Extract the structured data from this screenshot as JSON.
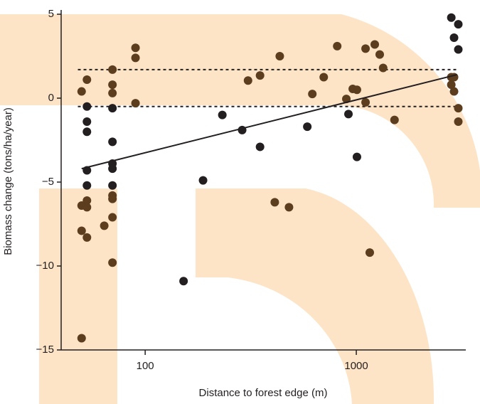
{
  "chart_data": {
    "type": "scatter",
    "xlabel": "Distance to forest edge (m)",
    "ylabel": "Biomass change (tons/ha/year)",
    "xscale": "log",
    "xlim": [
      40,
      3300
    ],
    "ylim": [
      -15,
      5
    ],
    "xticks": [
      100,
      1000
    ],
    "yticks": [
      {
        "value": 5,
        "label": "5"
      },
      {
        "value": 0,
        "label": "0"
      },
      {
        "value": -5,
        "label": "−5"
      },
      {
        "value": -10,
        "label": "−10"
      },
      {
        "value": -15,
        "label": "−15"
      }
    ],
    "series": [
      {
        "color": "#231f20",
        "x": [
          53,
          53,
          53,
          53,
          53,
          70,
          70,
          70,
          70,
          70,
          152,
          188,
          232,
          288,
          350,
          586,
          918,
          1007,
          2818,
          2904,
          3042,
          3042
        ],
        "values": [
          -0.5,
          -1.4,
          -2.0,
          -4.3,
          -5.2,
          -0.6,
          -2.6,
          -3.9,
          -4.2,
          -5.2,
          -10.9,
          -4.9,
          -1.0,
          -1.9,
          -2.9,
          -1.7,
          -0.95,
          -3.5,
          4.8,
          3.6,
          4.4,
          2.9
        ]
      },
      {
        "color": "#5c3d1e",
        "x": [
          50,
          50,
          50,
          50,
          53,
          53,
          53,
          53,
          64,
          70,
          70,
          70,
          70,
          70,
          70,
          70,
          90,
          90,
          90,
          307,
          350,
          411,
          434,
          480,
          619,
          701,
          812,
          897,
          962,
          1007,
          1106,
          1106,
          1158,
          1223,
          1291,
          1340,
          1517,
          2818,
          2818,
          2904,
          2904,
          3042,
          3042
        ],
        "values": [
          0.4,
          -6.4,
          -7.9,
          -14.3,
          -6.1,
          -6.5,
          1.1,
          -8.3,
          -7.6,
          1.7,
          0.8,
          0.3,
          -5.8,
          -6.0,
          -7.1,
          -9.8,
          3.0,
          2.4,
          -0.3,
          1.05,
          1.35,
          -6.2,
          2.5,
          -6.5,
          0.25,
          1.25,
          3.1,
          -0.05,
          0.55,
          0.5,
          2.95,
          -0.25,
          -9.2,
          3.2,
          2.6,
          1.8,
          -1.3,
          1.25,
          0.8,
          1.25,
          0.4,
          -0.6,
          -1.4
        ]
      }
    ],
    "fit": {
      "color": "#231f20",
      "x": [
        50,
        3000
      ],
      "values": [
        -4.2,
        1.4
      ]
    },
    "hlines": {
      "color": "#231f20",
      "x": [
        48,
        3000
      ],
      "values": [
        1.7,
        -0.5
      ]
    }
  }
}
